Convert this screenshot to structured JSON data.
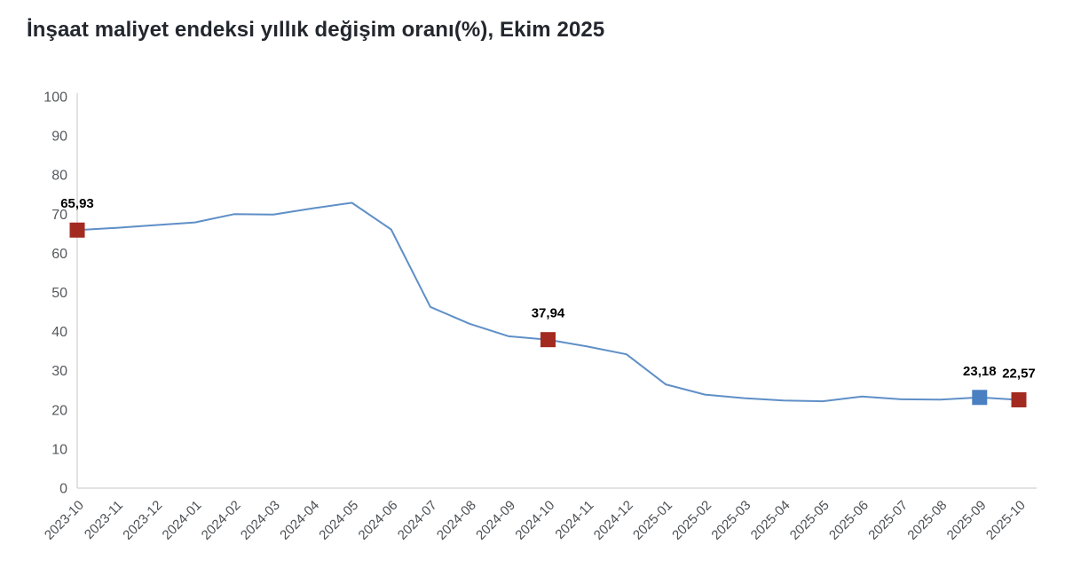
{
  "chart_data": {
    "type": "line",
    "title": "İnşaat maliyet endeksi yıllık değişim oranı(%), Ekim 2025",
    "categories": [
      "2023-10",
      "2023-11",
      "2023-12",
      "2024-01",
      "2024-02",
      "2024-03",
      "2024-04",
      "2024-05",
      "2024-06",
      "2024-07",
      "2024-08",
      "2024-09",
      "2024-10",
      "2024-11",
      "2024-12",
      "2025-01",
      "2025-02",
      "2025-03",
      "2025-04",
      "2025-05",
      "2025-06",
      "2025-07",
      "2025-08",
      "2025-09",
      "2025-10"
    ],
    "values": [
      65.93,
      66.5,
      67.2,
      67.9,
      70.0,
      69.9,
      71.5,
      72.9,
      66.1,
      46.3,
      42.0,
      38.8,
      37.94,
      36.2,
      34.2,
      26.5,
      23.9,
      23.0,
      22.4,
      22.2,
      23.4,
      22.7,
      22.6,
      23.18,
      22.57
    ],
    "ylim": [
      0,
      100
    ],
    "yticks": [
      0,
      10,
      20,
      30,
      40,
      50,
      60,
      70,
      80,
      90,
      100
    ],
    "grid": false,
    "legend": "none",
    "line_color": "#5f8fc7",
    "axis_color": "#d8d8d8",
    "marker_colors": {
      "red": "#a32a21",
      "blue": "#4a80c2"
    },
    "annotations": [
      {
        "category": "2023-10",
        "value_label": "65,93",
        "color": "red"
      },
      {
        "category": "2024-10",
        "value_label": "37,94",
        "color": "red"
      },
      {
        "category": "2025-09",
        "value_label": "23,18",
        "color": "blue"
      },
      {
        "category": "2025-10",
        "value_label": "22,57",
        "color": "red"
      }
    ]
  }
}
